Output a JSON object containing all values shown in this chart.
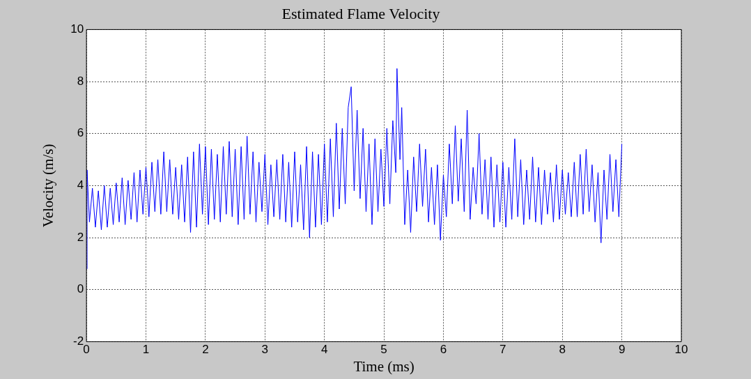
{
  "chart_data": {
    "type": "line",
    "title": "Estimated Flame Velocity",
    "xlabel": "Time (ms)",
    "ylabel": "Velocity (m/s)",
    "x": [
      0,
      0.01,
      0.05,
      0.1,
      0.15,
      0.2,
      0.25,
      0.3,
      0.35,
      0.4,
      0.45,
      0.5,
      0.55,
      0.6,
      0.65,
      0.7,
      0.75,
      0.8,
      0.85,
      0.9,
      0.95,
      1.0,
      1.05,
      1.1,
      1.15,
      1.2,
      1.25,
      1.3,
      1.35,
      1.4,
      1.45,
      1.5,
      1.55,
      1.6,
      1.65,
      1.7,
      1.75,
      1.8,
      1.85,
      1.9,
      1.95,
      2.0,
      2.05,
      2.1,
      2.15,
      2.2,
      2.25,
      2.3,
      2.35,
      2.4,
      2.45,
      2.5,
      2.55,
      2.6,
      2.65,
      2.7,
      2.75,
      2.8,
      2.85,
      2.9,
      2.95,
      3.0,
      3.05,
      3.1,
      3.15,
      3.2,
      3.25,
      3.3,
      3.35,
      3.4,
      3.45,
      3.5,
      3.55,
      3.6,
      3.65,
      3.7,
      3.75,
      3.8,
      3.85,
      3.9,
      3.95,
      4.0,
      4.05,
      4.1,
      4.15,
      4.2,
      4.25,
      4.3,
      4.35,
      4.4,
      4.45,
      4.5,
      4.55,
      4.6,
      4.65,
      4.7,
      4.75,
      4.8,
      4.85,
      4.9,
      4.95,
      5.0,
      5.05,
      5.1,
      5.15,
      5.2,
      5.22,
      5.27,
      5.3,
      5.35,
      5.4,
      5.45,
      5.5,
      5.55,
      5.6,
      5.65,
      5.7,
      5.75,
      5.8,
      5.85,
      5.9,
      5.95,
      6.0,
      6.05,
      6.1,
      6.15,
      6.2,
      6.25,
      6.3,
      6.35,
      6.4,
      6.45,
      6.5,
      6.55,
      6.6,
      6.65,
      6.7,
      6.75,
      6.8,
      6.85,
      6.9,
      6.95,
      7.0,
      7.05,
      7.1,
      7.15,
      7.2,
      7.25,
      7.3,
      7.35,
      7.4,
      7.45,
      7.5,
      7.55,
      7.6,
      7.65,
      7.7,
      7.75,
      7.8,
      7.85,
      7.9,
      7.95,
      8.0,
      8.05,
      8.1,
      8.15,
      8.2,
      8.25,
      8.3,
      8.35,
      8.4,
      8.45,
      8.5,
      8.55,
      8.6,
      8.65,
      8.7,
      8.75,
      8.8,
      8.85,
      8.9,
      8.95,
      9.0
    ],
    "values": [
      0.8,
      4.6,
      2.6,
      3.9,
      2.4,
      3.8,
      2.3,
      4.0,
      2.4,
      3.9,
      2.5,
      4.1,
      2.6,
      4.3,
      2.5,
      4.2,
      2.7,
      4.5,
      2.6,
      4.6,
      2.9,
      4.7,
      2.8,
      4.9,
      3.0,
      5.0,
      2.9,
      5.3,
      3.0,
      5.0,
      2.9,
      4.7,
      2.7,
      4.8,
      2.6,
      5.1,
      2.2,
      5.3,
      2.4,
      5.6,
      2.9,
      5.5,
      2.5,
      5.4,
      2.7,
      5.2,
      2.6,
      5.5,
      2.9,
      5.7,
      2.8,
      5.4,
      2.5,
      5.5,
      2.7,
      5.9,
      2.9,
      5.3,
      2.6,
      4.9,
      3.0,
      5.2,
      2.5,
      4.8,
      2.8,
      5.0,
      2.7,
      5.2,
      2.6,
      4.9,
      2.4,
      5.3,
      2.6,
      4.8,
      2.3,
      5.5,
      2.0,
      5.3,
      2.4,
      5.2,
      2.5,
      5.6,
      2.6,
      5.8,
      2.8,
      6.4,
      3.1,
      6.2,
      3.3,
      7.0,
      7.8,
      3.8,
      6.9,
      3.5,
      6.2,
      3.0,
      5.6,
      2.5,
      5.8,
      3.0,
      5.4,
      3.2,
      6.2,
      3.3,
      6.5,
      4.5,
      8.5,
      5.0,
      7.0,
      2.5,
      4.6,
      2.2,
      5.1,
      3.0,
      5.6,
      3.2,
      5.4,
      2.6,
      4.7,
      2.5,
      4.8,
      1.9,
      4.4,
      2.8,
      5.6,
      3.3,
      6.3,
      3.4,
      5.8,
      3.0,
      6.9,
      2.7,
      4.7,
      3.3,
      6.0,
      2.9,
      5.0,
      2.7,
      5.1,
      2.4,
      4.8,
      2.6,
      4.9,
      2.4,
      4.7,
      2.7,
      5.8,
      2.8,
      5.0,
      2.5,
      4.6,
      2.7,
      5.1,
      2.6,
      4.7,
      2.5,
      4.6,
      2.9,
      4.5,
      2.6,
      4.8,
      2.7,
      4.6,
      2.9,
      4.5,
      2.8,
      4.9,
      2.8,
      5.2,
      2.9,
      5.4,
      3.0,
      4.8,
      2.6,
      4.5,
      1.8,
      4.6,
      2.7,
      5.2,
      3.0,
      5.0,
      2.8,
      5.6
    ],
    "color": "#0000ff",
    "marker": "none",
    "line_style": "solid",
    "xlim": [
      0,
      10
    ],
    "xticks": [
      0,
      1,
      2,
      3,
      4,
      5,
      6,
      7,
      8,
      9,
      10
    ],
    "ylim": [
      -2,
      10
    ],
    "yticks": [
      -2,
      0,
      2,
      4,
      6,
      8,
      10
    ],
    "grid": true,
    "legend": false
  }
}
